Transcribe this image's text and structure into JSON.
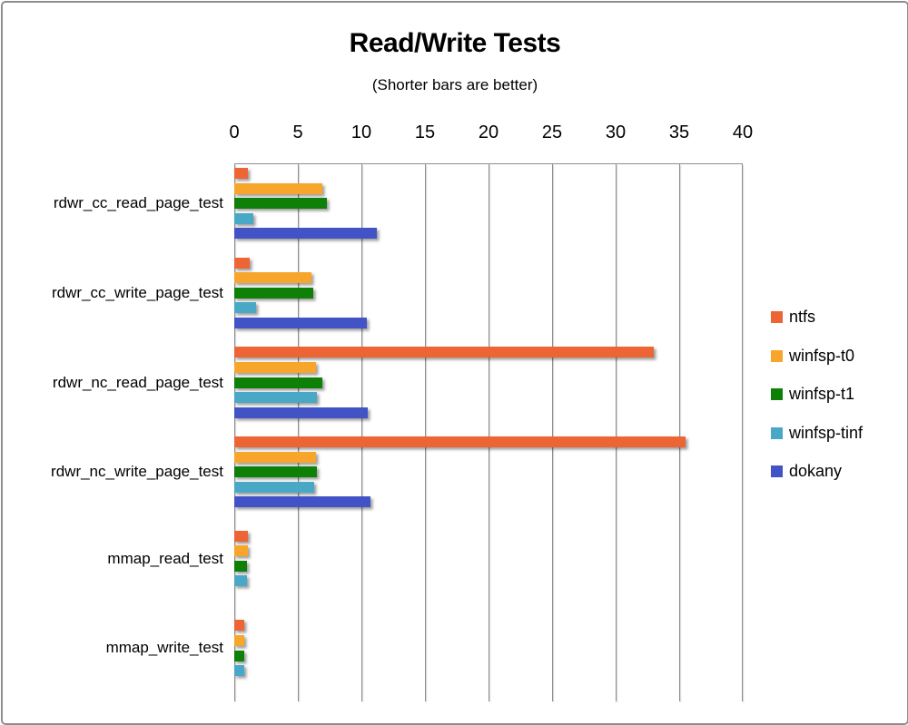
{
  "title": {
    "text": "Read/Write Tests"
  },
  "subtitle": {
    "text": "(Shorter bars are better)"
  },
  "colors": {
    "frame_border": "#8f8f8f",
    "gridline": "#8e8e8e",
    "text": "#000000",
    "background": "#ffffff"
  },
  "chart_data": {
    "type": "bar",
    "orientation": "horizontal",
    "title": "Read/Write Tests",
    "subtitle": "(Shorter bars are better)",
    "xlabel": "",
    "ylabel": "",
    "xlim": [
      0,
      40
    ],
    "xticks": [
      0,
      5,
      10,
      15,
      20,
      25,
      30,
      35,
      40
    ],
    "grid": "vertical",
    "legend_position": "right",
    "categories": [
      "rdwr_cc_read_page_test",
      "rdwr_cc_write_page_test",
      "rdwr_nc_read_page_test",
      "rdwr_nc_write_page_test",
      "mmap_read_test",
      "mmap_write_test"
    ],
    "series": [
      {
        "name": "ntfs",
        "color": "#ED6435",
        "values": [
          1.1,
          1.2,
          33.0,
          35.5,
          1.1,
          0.8
        ]
      },
      {
        "name": "winfsp-t0",
        "color": "#F7A62B",
        "values": [
          6.9,
          6.1,
          6.4,
          6.4,
          1.1,
          0.8
        ]
      },
      {
        "name": "winfsp-t1",
        "color": "#0E8008",
        "values": [
          7.3,
          6.2,
          6.9,
          6.5,
          1.0,
          0.8
        ]
      },
      {
        "name": "winfsp-tinf",
        "color": "#49A8C6",
        "values": [
          1.5,
          1.7,
          6.5,
          6.3,
          1.0,
          0.8
        ]
      },
      {
        "name": "dokany",
        "color": "#4254C5",
        "values": [
          11.2,
          10.4,
          10.5,
          10.7,
          null,
          null
        ]
      }
    ]
  }
}
